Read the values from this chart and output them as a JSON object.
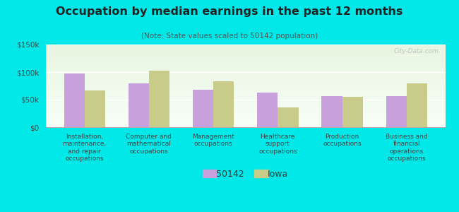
{
  "title": "Occupation by median earnings in the past 12 months",
  "subtitle": "(Note: State values scaled to 50142 population)",
  "categories": [
    "Installation,\nmaintenance,\nand repair\noccupations",
    "Computer and\nmathematical\noccupations",
    "Management\noccupations",
    "Healthcare\nsupport\noccupations",
    "Production\noccupations",
    "Business and\nfinancial\noperations\noccupations"
  ],
  "values_50142": [
    98000,
    80000,
    68000,
    63000,
    57000,
    57000
  ],
  "values_iowa": [
    67000,
    103000,
    83000,
    36000,
    55000,
    80000
  ],
  "color_50142": "#c8a0dc",
  "color_iowa": "#c8cc88",
  "background_color": "#00e8e8",
  "plot_bg_top": "#e8f5e0",
  "plot_bg_bottom": "#f8fff8",
  "ylim": [
    0,
    150000
  ],
  "yticks": [
    0,
    50000,
    100000,
    150000
  ],
  "ytick_labels": [
    "$0",
    "$50k",
    "$100k",
    "$150k"
  ],
  "legend_labels": [
    "50142",
    "Iowa"
  ],
  "watermark": "City-Data.com",
  "bar_width": 0.32
}
